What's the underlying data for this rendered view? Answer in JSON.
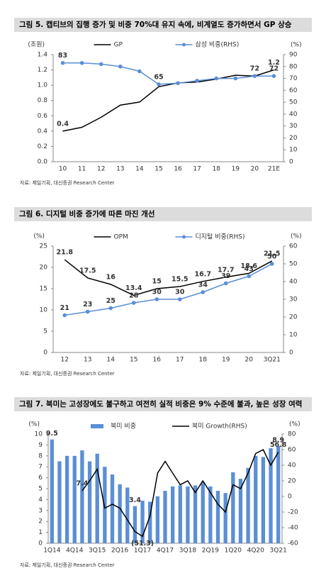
{
  "chart_data": [
    {
      "type": "line",
      "title": "그림 5. 캡티브의 집행 증가 및 비중 70%대 유지 속에, 비계열도 증가하면서 GP 상승",
      "y_label": "(조원)",
      "y2_label": "(%)",
      "categories": [
        "10",
        "11",
        "12",
        "13",
        "14",
        "15",
        "16",
        "17",
        "18",
        "19",
        "20",
        "21E"
      ],
      "series": [
        {
          "name": "GP",
          "color": "#000000",
          "marker": false,
          "values": [
            0.4,
            0.45,
            0.58,
            0.74,
            0.78,
            0.98,
            1.03,
            1.04,
            1.08,
            1.13,
            1.12,
            1.2
          ],
          "value_labels": [
            "0.4",
            null,
            null,
            null,
            null,
            null,
            null,
            null,
            null,
            null,
            null,
            "1.2"
          ]
        },
        {
          "name": "삼성 비중(RHS)",
          "color": "#5b8fd6",
          "axis": "y2",
          "marker": true,
          "values": [
            83,
            83,
            82,
            80,
            76,
            65,
            66,
            68,
            70,
            70,
            72,
            72
          ],
          "value_labels": [
            "83",
            null,
            null,
            null,
            null,
            "65",
            null,
            null,
            null,
            null,
            "72",
            "72"
          ]
        }
      ],
      "ylim": [
        0,
        1.4
      ],
      "yticks": [
        {
          "value": 0,
          "label": "0.0"
        },
        0.2,
        0.4,
        0.6,
        0.8,
        {
          "value": 1,
          "label": "1.0"
        },
        1.2,
        1.4
      ],
      "y2lim": [
        0,
        90
      ],
      "y2ticks": [
        0,
        10,
        20,
        30,
        40,
        50,
        60,
        70,
        80,
        90
      ],
      "source": "자료: 제일기획, 대신증권 Research Center"
    },
    {
      "type": "line",
      "title": "그림 6. 디지털 비중 증가에 따른 마진 개선",
      "y_label": "(%)",
      "y2_label": "(%)",
      "categories": [
        "12",
        "13",
        "14",
        "15",
        "16",
        "17",
        "18",
        "19",
        "20",
        "3Q21"
      ],
      "series": [
        {
          "name": "OPM",
          "color": "#000000",
          "label_color": "#555555",
          "marker": false,
          "values": [
            21.8,
            17.5,
            16.0,
            13.4,
            15.0,
            15.5,
            16.7,
            17.7,
            18.6,
            21.5
          ]
        },
        {
          "name": "디지털 비중(RHS)",
          "color": "#5b8fd6",
          "axis": "y2",
          "marker": true,
          "values": [
            21,
            23,
            25,
            28,
            30,
            30,
            34,
            39,
            43,
            50
          ]
        }
      ],
      "ylim": [
        0,
        25
      ],
      "yticks": [
        0,
        5,
        10,
        15,
        20,
        25
      ],
      "y2lim": [
        0,
        60
      ],
      "y2ticks": [
        0,
        10,
        20,
        30,
        40,
        50,
        60
      ],
      "source": "자료: 제일기획, 대신증권 Research Center"
    },
    {
      "type": "bar",
      "title": "그림 7. 북미는 고성장에도 불구하고 여전히 실적 비중은 9% 수준에 불과, 높은 성장 여력",
      "y_label": "(%)",
      "y2_label": "(%)",
      "categories": [
        "1Q14",
        null,
        null,
        "4Q14",
        null,
        null,
        "3Q15",
        null,
        null,
        "2Q16",
        null,
        null,
        "1Q17",
        null,
        null,
        "4Q17",
        null,
        null,
        "3Q18",
        null,
        null,
        "2Q19",
        null,
        null,
        "1Q20",
        null,
        null,
        "4Q20",
        null,
        null,
        "3Q21"
      ],
      "series": [
        {
          "name": "북미 비중",
          "type": "bar",
          "color": "#5b8fd6",
          "values": [
            9.5,
            7.5,
            8.0,
            8.0,
            8.5,
            7.5,
            8.2,
            7.0,
            6.3,
            5.4,
            5.1,
            3.4,
            3.9,
            3.8,
            4.3,
            4.8,
            5.2,
            5.3,
            5.2,
            5.3,
            5.6,
            5.2,
            4.8,
            4.6,
            6.5,
            5.9,
            6.9,
            8.0,
            7.9,
            8.7,
            8.9
          ],
          "value_labels": [
            "9.5",
            null,
            null,
            null,
            null,
            null,
            null,
            null,
            null,
            null,
            null,
            "3.4",
            null,
            null,
            null,
            null,
            null,
            null,
            null,
            null,
            null,
            null,
            null,
            null,
            null,
            null,
            null,
            null,
            null,
            null,
            "8.9"
          ]
        },
        {
          "name": "북미 Growth(RHS)",
          "type": "line",
          "color": "#000000",
          "axis": "y2",
          "values": [
            null,
            null,
            null,
            null,
            7.4,
            20,
            35,
            -15,
            -10,
            -15,
            -30,
            -45,
            -51.3,
            -25,
            30,
            45,
            30,
            15,
            20,
            5,
            20,
            5,
            -10,
            -20,
            15,
            10,
            30,
            55,
            60,
            40,
            56.8
          ],
          "value_labels": [
            null,
            null,
            null,
            null,
            "7.4",
            null,
            null,
            null,
            null,
            null,
            null,
            null,
            "(51.3)",
            null,
            null,
            null,
            null,
            null,
            null,
            null,
            null,
            null,
            null,
            null,
            null,
            null,
            null,
            null,
            null,
            null,
            "56.8"
          ]
        }
      ],
      "ylim": [
        0,
        10
      ],
      "yticks": [
        0,
        1,
        2,
        3,
        4,
        5,
        6,
        7,
        8,
        9,
        10
      ],
      "y2lim": [
        -60,
        80
      ],
      "y2ticks": [
        -60,
        -40,
        -20,
        0,
        20,
        40,
        60,
        80
      ],
      "source": "자료: 제일기획, 대신증권 Research Center"
    }
  ]
}
